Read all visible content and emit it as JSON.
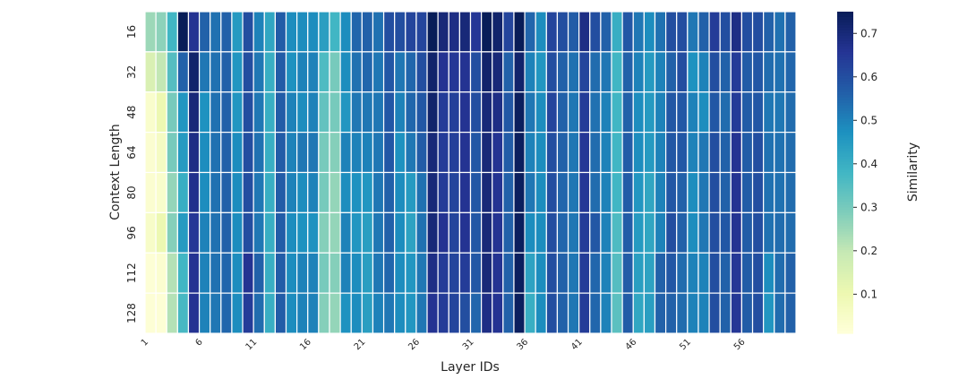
{
  "chart_data": {
    "type": "heatmap",
    "title": "",
    "xlabel": "Layer IDs",
    "ylabel": "Context Length",
    "colorbar_label": "Similarity",
    "colormap": "YlGnBu",
    "vmin": 0.01,
    "vmax": 0.75,
    "colorbar_ticks": [
      "0.1",
      "0.2",
      "0.3",
      "0.4",
      "0.5",
      "0.6",
      "0.7"
    ],
    "x_tick_labels": [
      "1",
      "6",
      "11",
      "16",
      "21",
      "26",
      "31",
      "36",
      "41",
      "46",
      "51",
      "56"
    ],
    "x_tick_positions": [
      1,
      6,
      11,
      16,
      21,
      26,
      31,
      36,
      41,
      46,
      51,
      56
    ],
    "n_layers": 60,
    "rows": [
      "16",
      "32",
      "48",
      "64",
      "80",
      "96",
      "112",
      "128"
    ],
    "values": [
      [
        0.25,
        0.27,
        0.38,
        0.75,
        0.66,
        0.56,
        0.53,
        0.56,
        0.45,
        0.6,
        0.5,
        0.42,
        0.57,
        0.48,
        0.48,
        0.48,
        0.44,
        0.38,
        0.48,
        0.55,
        0.56,
        0.53,
        0.6,
        0.6,
        0.62,
        0.62,
        0.75,
        0.7,
        0.68,
        0.7,
        0.65,
        0.76,
        0.72,
        0.62,
        0.76,
        0.55,
        0.48,
        0.62,
        0.6,
        0.57,
        0.68,
        0.6,
        0.56,
        0.4,
        0.58,
        0.52,
        0.48,
        0.53,
        0.6,
        0.6,
        0.52,
        0.56,
        0.64,
        0.6,
        0.68,
        0.6,
        0.6,
        0.56,
        0.53,
        0.56
      ],
      [
        0.15,
        0.2,
        0.35,
        0.56,
        0.72,
        0.52,
        0.53,
        0.56,
        0.46,
        0.6,
        0.52,
        0.4,
        0.57,
        0.47,
        0.5,
        0.5,
        0.36,
        0.3,
        0.48,
        0.53,
        0.55,
        0.52,
        0.58,
        0.52,
        0.55,
        0.6,
        0.72,
        0.66,
        0.65,
        0.66,
        0.6,
        0.72,
        0.7,
        0.56,
        0.72,
        0.5,
        0.46,
        0.6,
        0.56,
        0.53,
        0.62,
        0.54,
        0.52,
        0.38,
        0.56,
        0.5,
        0.45,
        0.5,
        0.56,
        0.6,
        0.47,
        0.5,
        0.6,
        0.56,
        0.64,
        0.57,
        0.58,
        0.54,
        0.53,
        0.55
      ],
      [
        0.04,
        0.1,
        0.3,
        0.46,
        0.7,
        0.47,
        0.53,
        0.56,
        0.46,
        0.6,
        0.52,
        0.4,
        0.57,
        0.5,
        0.48,
        0.5,
        0.33,
        0.3,
        0.46,
        0.52,
        0.52,
        0.52,
        0.58,
        0.5,
        0.55,
        0.58,
        0.72,
        0.64,
        0.63,
        0.66,
        0.6,
        0.7,
        0.68,
        0.58,
        0.74,
        0.52,
        0.48,
        0.62,
        0.56,
        0.52,
        0.64,
        0.53,
        0.5,
        0.38,
        0.56,
        0.48,
        0.45,
        0.5,
        0.58,
        0.58,
        0.5,
        0.48,
        0.58,
        0.54,
        0.64,
        0.57,
        0.58,
        0.52,
        0.52,
        0.54
      ],
      [
        0.03,
        0.06,
        0.3,
        0.45,
        0.68,
        0.48,
        0.53,
        0.56,
        0.48,
        0.6,
        0.53,
        0.4,
        0.57,
        0.5,
        0.52,
        0.52,
        0.3,
        0.28,
        0.5,
        0.5,
        0.5,
        0.52,
        0.58,
        0.47,
        0.52,
        0.57,
        0.7,
        0.64,
        0.63,
        0.66,
        0.58,
        0.7,
        0.66,
        0.57,
        0.74,
        0.5,
        0.48,
        0.6,
        0.56,
        0.52,
        0.65,
        0.54,
        0.5,
        0.38,
        0.57,
        0.48,
        0.45,
        0.5,
        0.58,
        0.58,
        0.5,
        0.52,
        0.6,
        0.56,
        0.66,
        0.57,
        0.6,
        0.53,
        0.53,
        0.54
      ],
      [
        0.03,
        0.04,
        0.26,
        0.4,
        0.67,
        0.48,
        0.53,
        0.56,
        0.48,
        0.6,
        0.52,
        0.4,
        0.57,
        0.5,
        0.48,
        0.5,
        0.3,
        0.26,
        0.48,
        0.47,
        0.46,
        0.52,
        0.56,
        0.48,
        0.45,
        0.53,
        0.7,
        0.64,
        0.62,
        0.66,
        0.58,
        0.7,
        0.66,
        0.56,
        0.74,
        0.52,
        0.48,
        0.6,
        0.55,
        0.52,
        0.65,
        0.54,
        0.5,
        0.38,
        0.57,
        0.46,
        0.42,
        0.5,
        0.58,
        0.56,
        0.48,
        0.52,
        0.6,
        0.56,
        0.66,
        0.57,
        0.6,
        0.53,
        0.53,
        0.54
      ],
      [
        0.05,
        0.1,
        0.28,
        0.45,
        0.65,
        0.5,
        0.53,
        0.56,
        0.48,
        0.6,
        0.52,
        0.4,
        0.57,
        0.48,
        0.47,
        0.47,
        0.28,
        0.26,
        0.5,
        0.46,
        0.44,
        0.52,
        0.56,
        0.48,
        0.43,
        0.53,
        0.7,
        0.66,
        0.62,
        0.66,
        0.58,
        0.7,
        0.66,
        0.56,
        0.74,
        0.48,
        0.48,
        0.6,
        0.55,
        0.52,
        0.64,
        0.58,
        0.5,
        0.36,
        0.57,
        0.45,
        0.42,
        0.5,
        0.6,
        0.56,
        0.48,
        0.52,
        0.6,
        0.58,
        0.66,
        0.57,
        0.6,
        0.53,
        0.54,
        0.54
      ],
      [
        0.02,
        0.03,
        0.22,
        0.38,
        0.66,
        0.5,
        0.53,
        0.55,
        0.48,
        0.66,
        0.56,
        0.4,
        0.57,
        0.48,
        0.5,
        0.5,
        0.3,
        0.28,
        0.5,
        0.48,
        0.44,
        0.52,
        0.55,
        0.48,
        0.46,
        0.52,
        0.68,
        0.64,
        0.62,
        0.64,
        0.58,
        0.7,
        0.66,
        0.56,
        0.74,
        0.43,
        0.48,
        0.6,
        0.56,
        0.52,
        0.64,
        0.55,
        0.5,
        0.35,
        0.57,
        0.44,
        0.43,
        0.56,
        0.58,
        0.54,
        0.5,
        0.5,
        0.6,
        0.56,
        0.65,
        0.57,
        0.6,
        0.48,
        0.54,
        0.56
      ],
      [
        0.02,
        0.02,
        0.22,
        0.37,
        0.66,
        0.5,
        0.52,
        0.55,
        0.48,
        0.64,
        0.54,
        0.4,
        0.57,
        0.48,
        0.5,
        0.5,
        0.28,
        0.26,
        0.47,
        0.48,
        0.44,
        0.5,
        0.52,
        0.48,
        0.46,
        0.52,
        0.66,
        0.64,
        0.62,
        0.6,
        0.55,
        0.68,
        0.66,
        0.56,
        0.74,
        0.4,
        0.48,
        0.6,
        0.56,
        0.52,
        0.64,
        0.55,
        0.5,
        0.34,
        0.57,
        0.42,
        0.44,
        0.56,
        0.56,
        0.54,
        0.5,
        0.5,
        0.6,
        0.56,
        0.65,
        0.57,
        0.6,
        0.46,
        0.54,
        0.56
      ]
    ]
  }
}
